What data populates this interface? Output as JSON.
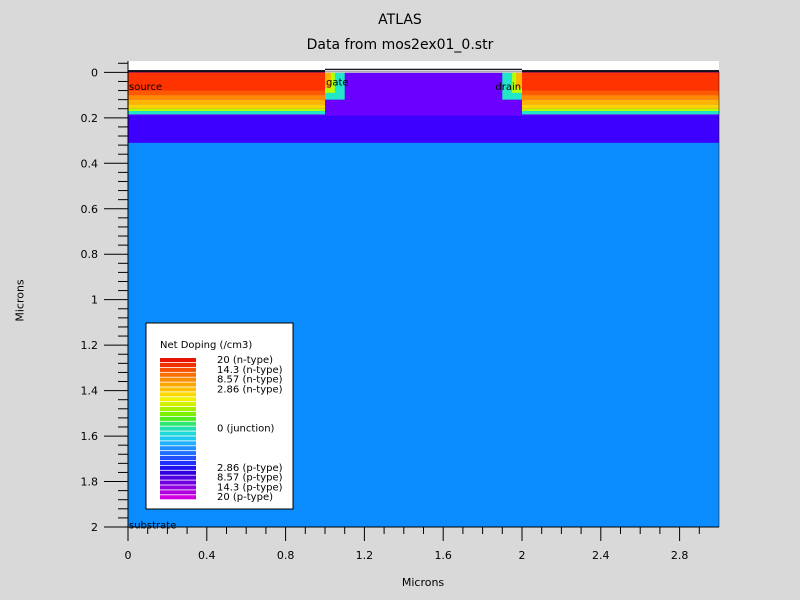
{
  "title": "ATLAS",
  "subtitle": "Data from mos2ex01_0.str",
  "chart_data": {
    "type": "heatmap",
    "title": "ATLAS",
    "subtitle": "Data from mos2ex01_0.str",
    "xlabel": "Microns",
    "ylabel": "Microns",
    "xlim": [
      0,
      3
    ],
    "ylim": [
      2,
      -0.05
    ],
    "y_inverted": true,
    "grid": false,
    "xticks": [
      0,
      0.4,
      0.8,
      1.2,
      1.6,
      2,
      2.4,
      2.8
    ],
    "xtick_labels": [
      "0",
      "0.4",
      "0.8",
      "1.2",
      "1.6",
      "2",
      "2.4",
      "2.8"
    ],
    "yticks": [
      0,
      0.2,
      0.4,
      0.6,
      0.8,
      1,
      1.2,
      1.4,
      1.6,
      1.8,
      2
    ],
    "ytick_labels": [
      "0",
      "0.2",
      "0.4",
      "0.6",
      "0.8",
      "1",
      "1.2",
      "1.4",
      "1.6",
      "1.8",
      "2"
    ],
    "regions": [
      {
        "x0": 0,
        "x1": 3,
        "y0": -0.01,
        "y1": 0.47,
        "color": "#0a8cff"
      },
      {
        "x0": 0,
        "x1": 3,
        "y0": -0.01,
        "y1": 0.31,
        "color": "#3d00ff"
      },
      {
        "x0": 0,
        "x1": 3,
        "y0": -0.01,
        "y1": 0.19,
        "color": "#6a00ff"
      }
    ],
    "source_bands": [
      {
        "y0": 0.0,
        "y1": 0.08,
        "color": "#ff3300"
      },
      {
        "y0": 0.08,
        "y1": 0.1,
        "color": "#ff5a00"
      },
      {
        "y0": 0.1,
        "y1": 0.12,
        "color": "#ff8a00"
      },
      {
        "y0": 0.12,
        "y1": 0.14,
        "color": "#ffb400"
      },
      {
        "y0": 0.14,
        "y1": 0.16,
        "color": "#ffd400"
      },
      {
        "y0": 0.16,
        "y1": 0.17,
        "color": "#b8ff00"
      },
      {
        "y0": 0.17,
        "y1": 0.185,
        "color": "#22e6c8"
      }
    ],
    "source_region": {
      "x0": 0,
      "x1": 1.0
    },
    "drain_region": {
      "x0": 2.0,
      "x1": 3.0
    },
    "oxide": {
      "x0": 1.0,
      "x1": 2.0,
      "y0": -0.01,
      "y1": 0.002,
      "color": "#ffffff"
    },
    "contacts": [
      {
        "x0": 0,
        "x1": 1.0,
        "y0": -0.01,
        "y1": -0.002
      },
      {
        "x0": 1.0,
        "x1": 2.0,
        "y0": -0.016,
        "y1": -0.01
      },
      {
        "x0": 2.0,
        "x1": 3.0,
        "y0": -0.01,
        "y1": -0.002
      }
    ],
    "annotations": [
      {
        "text": "source",
        "x": 0.0,
        "y": 0.06
      },
      {
        "text": "gate",
        "x": 1.0,
        "y": 0.04
      },
      {
        "text": "drain",
        "x": 1.86,
        "y": 0.06
      },
      {
        "text": "substrate",
        "x": 0.0,
        "y": 1.99
      }
    ],
    "legend": {
      "title": "Net Doping (/cm3)",
      "placement": "bottom-left",
      "labels": [
        {
          "text": "20 (n-type)",
          "row": 0
        },
        {
          "text": "14.3 (n-type)",
          "row": 2
        },
        {
          "text": "8.57 (n-type)",
          "row": 4
        },
        {
          "text": "2.86 (n-type)",
          "row": 6
        },
        {
          "text": "0 (junction)",
          "row": 14
        },
        {
          "text": "2.86 (p-type)",
          "row": 22
        },
        {
          "text": "8.57 (p-type)",
          "row": 24
        },
        {
          "text": "14.3 (p-type)",
          "row": 26
        },
        {
          "text": "20 (p-type)",
          "row": 28
        }
      ],
      "colors": [
        "#e61400",
        "#f03200",
        "#f55000",
        "#f86e00",
        "#fa8c00",
        "#fca600",
        "#fdc000",
        "#fdd800",
        "#f0f000",
        "#d0f000",
        "#a8f000",
        "#7cf000",
        "#50ec20",
        "#30e870",
        "#20e0b0",
        "#20d8d8",
        "#20c8f0",
        "#20b0ff",
        "#2090ff",
        "#2070ff",
        "#2050ff",
        "#2030ff",
        "#2010f0",
        "#3000e0",
        "#5000e0",
        "#7000e0",
        "#9000e0",
        "#b000e0",
        "#d000e0"
      ]
    }
  }
}
